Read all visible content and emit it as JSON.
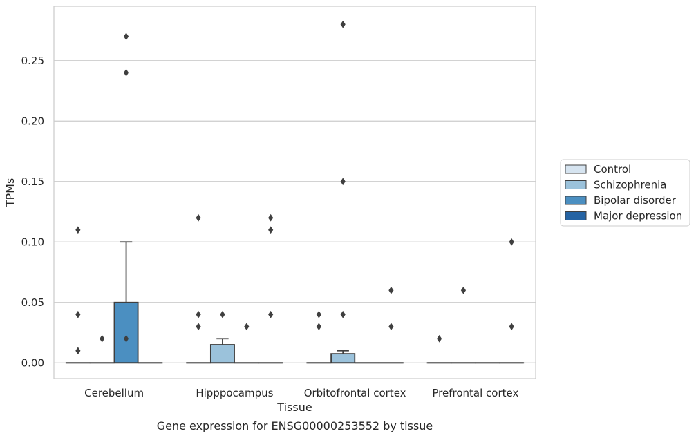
{
  "chart_data": {
    "type": "box",
    "title": "",
    "caption": "Gene expression for ENSG00000253552 by tissue",
    "xlabel": "Tissue",
    "ylabel": "TPMs",
    "ylim": [
      -0.013,
      0.295
    ],
    "yticks": [
      0.0,
      0.05,
      0.1,
      0.15,
      0.2,
      0.25
    ],
    "ytick_labels": [
      "0.00",
      "0.05",
      "0.10",
      "0.15",
      "0.20",
      "0.25"
    ],
    "categories": [
      "Cerebellum",
      "Hipppocampus",
      "Orbitofrontal cortex",
      "Prefrontal cortex"
    ],
    "grid": "horizontal",
    "legend_position": "right",
    "series": [
      {
        "name": "Control",
        "color": "#d6e4f0",
        "boxes": [
          {
            "q1": 0,
            "median": 0,
            "q3": 0,
            "whisker_low": 0,
            "whisker_high": 0,
            "outliers": [
              0.11,
              0.04,
              0.01
            ]
          },
          {
            "q1": 0,
            "median": 0,
            "q3": 0,
            "whisker_low": 0,
            "whisker_high": 0,
            "outliers": [
              0.12,
              0.04,
              0.03
            ]
          },
          {
            "q1": 0,
            "median": 0,
            "q3": 0,
            "whisker_low": 0,
            "whisker_high": 0,
            "outliers": [
              0.04,
              0.03
            ]
          },
          {
            "q1": 0,
            "median": 0,
            "q3": 0,
            "whisker_low": 0,
            "whisker_high": 0,
            "outliers": [
              0.02
            ]
          }
        ]
      },
      {
        "name": "Schizophrenia",
        "color": "#9bc2db",
        "boxes": [
          {
            "q1": 0,
            "median": 0,
            "q3": 0,
            "whisker_low": 0,
            "whisker_high": 0,
            "outliers": [
              0.02
            ]
          },
          {
            "q1": 0,
            "median": 0,
            "q3": 0.015,
            "whisker_low": 0,
            "whisker_high": 0.02,
            "outliers": [
              0.04
            ]
          },
          {
            "q1": 0,
            "median": 0,
            "q3": 0.0075,
            "whisker_low": 0,
            "whisker_high": 0.01,
            "outliers": [
              0.28,
              0.15,
              0.04
            ]
          },
          {
            "q1": 0,
            "median": 0,
            "q3": 0,
            "whisker_low": 0,
            "whisker_high": 0,
            "outliers": [
              0.06
            ]
          }
        ]
      },
      {
        "name": "Bipolar disorder",
        "color": "#4b8fc1",
        "boxes": [
          {
            "q1": 0,
            "median": 0,
            "q3": 0.05,
            "whisker_low": 0,
            "whisker_high": 0.1,
            "outliers": [
              0.27,
              0.24,
              0.02
            ]
          },
          {
            "q1": 0,
            "median": 0,
            "q3": 0,
            "whisker_low": 0,
            "whisker_high": 0,
            "outliers": [
              0.03
            ]
          },
          {
            "q1": 0,
            "median": 0,
            "q3": 0,
            "whisker_low": 0,
            "whisker_high": 0,
            "outliers": []
          },
          {
            "q1": 0,
            "median": 0,
            "q3": 0,
            "whisker_low": 0,
            "whisker_high": 0,
            "outliers": []
          }
        ]
      },
      {
        "name": "Major depression",
        "color": "#2563a3",
        "boxes": [
          {
            "q1": 0,
            "median": 0,
            "q3": 0,
            "whisker_low": 0,
            "whisker_high": 0,
            "outliers": []
          },
          {
            "q1": 0,
            "median": 0,
            "q3": 0,
            "whisker_low": 0,
            "whisker_high": 0,
            "outliers": [
              0.12,
              0.11,
              0.04
            ]
          },
          {
            "q1": 0,
            "median": 0,
            "q3": 0,
            "whisker_low": 0,
            "whisker_high": 0,
            "outliers": [
              0.06,
              0.03
            ]
          },
          {
            "q1": 0,
            "median": 0,
            "q3": 0,
            "whisker_low": 0,
            "whisker_high": 0,
            "outliers": [
              0.1,
              0.03
            ]
          }
        ]
      }
    ]
  }
}
